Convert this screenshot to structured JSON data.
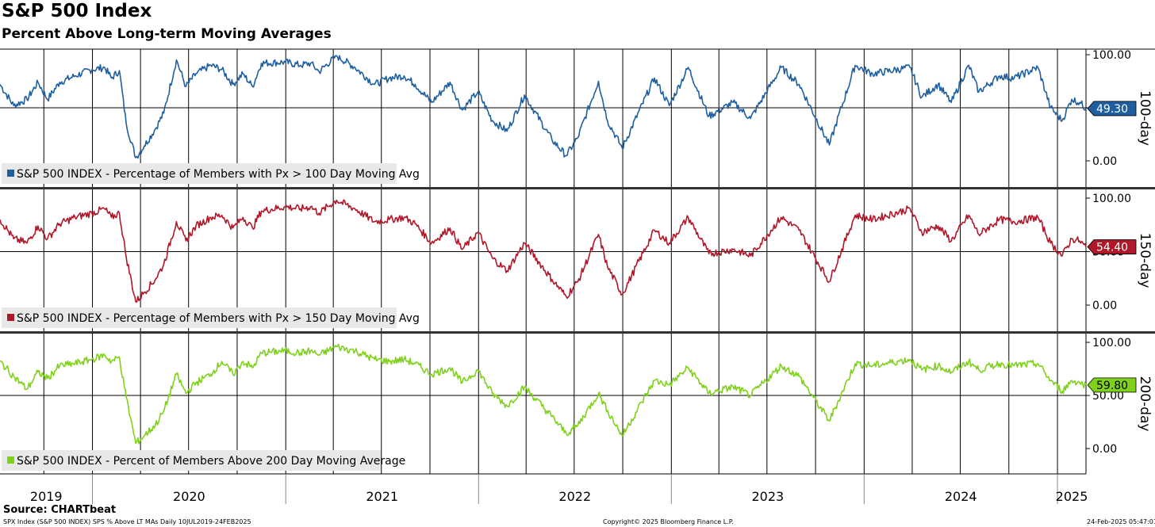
{
  "header": {
    "title": "S&P 500 Index",
    "subtitle": "Percent Above Long-term Moving Averages"
  },
  "footer": {
    "source": "Source: CHARTbeat",
    "ticker_info": "SPX Index (S&P 500 INDEX) SPS % Above LT MAs  Daily 10JUL2019-24FEB2025",
    "copyright": "Copyright© 2025 Bloomberg Finance L.P.",
    "timestamp": "24-Feb-2025 05:47:01"
  },
  "colors": {
    "series_100": "#1f5fa0",
    "series_150": "#b0182a",
    "series_200": "#7fd11b",
    "grid": "#000000",
    "legend_bg": "#e8e8e8"
  },
  "chart_data": {
    "type": "line",
    "x_range": [
      "2019-07-10",
      "2025-02-24"
    ],
    "x_tick_labels": [
      "2019",
      "2020",
      "2021",
      "2022",
      "2023",
      "2024",
      "2025"
    ],
    "x_year_boundaries": [
      "2020-01-01",
      "2021-01-01",
      "2022-01-01",
      "2023-01-01",
      "2024-01-01",
      "2025-01-01"
    ],
    "ylim": [
      0,
      100
    ],
    "y_tick_labels": [
      "100.00",
      "50.00",
      "0.00"
    ],
    "grid": true,
    "panels": [
      {
        "id": "p100",
        "side_label": "100-day",
        "legend": "S&P 500 INDEX - Percentage of Members with Px > 100 Day Moving Avg",
        "last_value_label": "49.30",
        "last_value": 49.3,
        "color_key": "series_100",
        "points": [
          [
            "2019-07-10",
            72
          ],
          [
            "2019-08-05",
            52
          ],
          [
            "2019-08-30",
            58
          ],
          [
            "2019-09-20",
            74
          ],
          [
            "2019-10-08",
            58
          ],
          [
            "2019-10-31",
            74
          ],
          [
            "2019-11-29",
            80
          ],
          [
            "2019-12-31",
            86
          ],
          [
            "2020-01-24",
            88
          ],
          [
            "2020-02-06",
            78
          ],
          [
            "2020-02-21",
            85
          ],
          [
            "2020-03-05",
            35
          ],
          [
            "2020-03-23",
            3
          ],
          [
            "2020-04-08",
            14
          ],
          [
            "2020-04-29",
            30
          ],
          [
            "2020-05-15",
            45
          ],
          [
            "2020-06-08",
            95
          ],
          [
            "2020-06-26",
            70
          ],
          [
            "2020-07-15",
            82
          ],
          [
            "2020-08-12",
            90
          ],
          [
            "2020-09-02",
            86
          ],
          [
            "2020-09-23",
            72
          ],
          [
            "2020-10-12",
            82
          ],
          [
            "2020-10-30",
            70
          ],
          [
            "2020-11-16",
            92
          ],
          [
            "2020-12-31",
            93
          ],
          [
            "2021-01-29",
            90
          ],
          [
            "2021-02-17",
            92
          ],
          [
            "2021-03-05",
            84
          ],
          [
            "2021-04-07",
            99
          ],
          [
            "2021-05-12",
            88
          ],
          [
            "2021-06-18",
            72
          ],
          [
            "2021-07-16",
            78
          ],
          [
            "2021-08-13",
            80
          ],
          [
            "2021-09-03",
            72
          ],
          [
            "2021-10-04",
            55
          ],
          [
            "2021-11-08",
            74
          ],
          [
            "2021-12-01",
            48
          ],
          [
            "2021-12-31",
            65
          ],
          [
            "2022-01-27",
            38
          ],
          [
            "2022-02-24",
            28
          ],
          [
            "2022-03-29",
            62
          ],
          [
            "2022-05-20",
            20
          ],
          [
            "2022-06-16",
            5
          ],
          [
            "2022-07-08",
            22
          ],
          [
            "2022-08-16",
            75
          ],
          [
            "2022-09-02",
            38
          ],
          [
            "2022-09-30",
            12
          ],
          [
            "2022-11-30",
            78
          ],
          [
            "2022-12-28",
            52
          ],
          [
            "2023-02-02",
            88
          ],
          [
            "2023-03-13",
            42
          ],
          [
            "2023-04-28",
            55
          ],
          [
            "2023-05-31",
            40
          ],
          [
            "2023-07-28",
            88
          ],
          [
            "2023-08-31",
            72
          ],
          [
            "2023-10-27",
            15
          ],
          [
            "2023-12-15",
            90
          ],
          [
            "2024-01-17",
            82
          ],
          [
            "2024-03-28",
            88
          ],
          [
            "2024-04-19",
            60
          ],
          [
            "2024-05-20",
            72
          ],
          [
            "2024-06-14",
            55
          ],
          [
            "2024-07-17",
            90
          ],
          [
            "2024-08-05",
            65
          ],
          [
            "2024-09-13",
            80
          ],
          [
            "2024-10-11",
            78
          ],
          [
            "2024-11-25",
            88
          ],
          [
            "2024-12-19",
            50
          ],
          [
            "2025-01-10",
            38
          ],
          [
            "2025-01-28",
            58
          ],
          [
            "2025-02-12",
            55
          ],
          [
            "2025-02-24",
            49.3
          ]
        ]
      },
      {
        "id": "p150",
        "side_label": "150-day",
        "legend": "S&P 500 INDEX - Percentage of Members with Px > 150 Day Moving Avg",
        "last_value_label": "54.40",
        "last_value": 54.4,
        "color_key": "series_150",
        "points": [
          [
            "2019-07-10",
            80
          ],
          [
            "2019-08-05",
            62
          ],
          [
            "2019-08-30",
            58
          ],
          [
            "2019-09-20",
            74
          ],
          [
            "2019-10-08",
            62
          ],
          [
            "2019-10-31",
            76
          ],
          [
            "2019-11-29",
            82
          ],
          [
            "2019-12-31",
            86
          ],
          [
            "2020-01-24",
            90
          ],
          [
            "2020-02-06",
            82
          ],
          [
            "2020-02-21",
            86
          ],
          [
            "2020-03-05",
            45
          ],
          [
            "2020-03-23",
            3
          ],
          [
            "2020-04-08",
            12
          ],
          [
            "2020-04-29",
            24
          ],
          [
            "2020-05-15",
            38
          ],
          [
            "2020-06-08",
            78
          ],
          [
            "2020-06-26",
            60
          ],
          [
            "2020-07-15",
            74
          ],
          [
            "2020-08-12",
            82
          ],
          [
            "2020-09-02",
            84
          ],
          [
            "2020-09-23",
            72
          ],
          [
            "2020-10-12",
            82
          ],
          [
            "2020-10-30",
            72
          ],
          [
            "2020-11-16",
            88
          ],
          [
            "2020-12-31",
            92
          ],
          [
            "2021-01-29",
            90
          ],
          [
            "2021-02-17",
            92
          ],
          [
            "2021-03-05",
            86
          ],
          [
            "2021-04-07",
            98
          ],
          [
            "2021-05-12",
            90
          ],
          [
            "2021-06-18",
            78
          ],
          [
            "2021-07-16",
            80
          ],
          [
            "2021-08-13",
            82
          ],
          [
            "2021-09-03",
            76
          ],
          [
            "2021-10-04",
            58
          ],
          [
            "2021-11-08",
            72
          ],
          [
            "2021-12-01",
            52
          ],
          [
            "2021-12-31",
            68
          ],
          [
            "2022-01-27",
            44
          ],
          [
            "2022-02-24",
            32
          ],
          [
            "2022-03-29",
            58
          ],
          [
            "2022-05-20",
            24
          ],
          [
            "2022-06-16",
            8
          ],
          [
            "2022-07-08",
            22
          ],
          [
            "2022-08-16",
            66
          ],
          [
            "2022-09-02",
            36
          ],
          [
            "2022-09-30",
            10
          ],
          [
            "2022-11-30",
            70
          ],
          [
            "2022-12-28",
            58
          ],
          [
            "2023-02-02",
            82
          ],
          [
            "2023-03-13",
            48
          ],
          [
            "2023-04-28",
            52
          ],
          [
            "2023-05-31",
            46
          ],
          [
            "2023-07-28",
            82
          ],
          [
            "2023-08-31",
            70
          ],
          [
            "2023-10-27",
            22
          ],
          [
            "2023-12-15",
            84
          ],
          [
            "2024-01-17",
            80
          ],
          [
            "2024-03-28",
            90
          ],
          [
            "2024-04-19",
            68
          ],
          [
            "2024-05-20",
            74
          ],
          [
            "2024-06-14",
            60
          ],
          [
            "2024-07-17",
            84
          ],
          [
            "2024-08-05",
            66
          ],
          [
            "2024-09-13",
            80
          ],
          [
            "2024-10-11",
            78
          ],
          [
            "2024-11-25",
            82
          ],
          [
            "2024-12-19",
            58
          ],
          [
            "2025-01-10",
            46
          ],
          [
            "2025-01-28",
            62
          ],
          [
            "2025-02-12",
            60
          ],
          [
            "2025-02-24",
            54.4
          ]
        ]
      },
      {
        "id": "p200",
        "side_label": "200-day",
        "legend": "S&P 500 INDEX - Percent of Members Above 200 Day Moving Average",
        "last_value_label": "59.80",
        "last_value": 59.8,
        "color_key": "series_200",
        "points": [
          [
            "2019-07-10",
            82
          ],
          [
            "2019-08-05",
            68
          ],
          [
            "2019-08-30",
            56
          ],
          [
            "2019-09-20",
            72
          ],
          [
            "2019-10-08",
            66
          ],
          [
            "2019-10-31",
            78
          ],
          [
            "2019-11-29",
            80
          ],
          [
            "2019-12-31",
            84
          ],
          [
            "2020-01-24",
            88
          ],
          [
            "2020-02-06",
            82
          ],
          [
            "2020-02-21",
            86
          ],
          [
            "2020-03-05",
            48
          ],
          [
            "2020-03-23",
            5
          ],
          [
            "2020-04-08",
            12
          ],
          [
            "2020-04-29",
            22
          ],
          [
            "2020-05-15",
            35
          ],
          [
            "2020-06-08",
            70
          ],
          [
            "2020-06-26",
            52
          ],
          [
            "2020-07-15",
            62
          ],
          [
            "2020-08-12",
            70
          ],
          [
            "2020-09-02",
            82
          ],
          [
            "2020-09-23",
            70
          ],
          [
            "2020-10-12",
            82
          ],
          [
            "2020-10-30",
            76
          ],
          [
            "2020-11-16",
            90
          ],
          [
            "2020-12-31",
            92
          ],
          [
            "2021-01-29",
            90
          ],
          [
            "2021-02-17",
            92
          ],
          [
            "2021-03-05",
            88
          ],
          [
            "2021-04-07",
            96
          ],
          [
            "2021-05-12",
            92
          ],
          [
            "2021-06-18",
            84
          ],
          [
            "2021-07-16",
            82
          ],
          [
            "2021-08-13",
            84
          ],
          [
            "2021-09-03",
            80
          ],
          [
            "2021-10-04",
            70
          ],
          [
            "2021-11-08",
            76
          ],
          [
            "2021-12-01",
            62
          ],
          [
            "2021-12-31",
            74
          ],
          [
            "2022-01-27",
            52
          ],
          [
            "2022-02-24",
            40
          ],
          [
            "2022-03-29",
            58
          ],
          [
            "2022-05-20",
            30
          ],
          [
            "2022-06-16",
            14
          ],
          [
            "2022-07-08",
            22
          ],
          [
            "2022-08-16",
            52
          ],
          [
            "2022-09-02",
            36
          ],
          [
            "2022-09-30",
            12
          ],
          [
            "2022-11-30",
            64
          ],
          [
            "2022-12-28",
            60
          ],
          [
            "2023-02-02",
            76
          ],
          [
            "2023-03-13",
            52
          ],
          [
            "2023-04-28",
            58
          ],
          [
            "2023-05-31",
            50
          ],
          [
            "2023-07-28",
            78
          ],
          [
            "2023-08-31",
            68
          ],
          [
            "2023-10-27",
            26
          ],
          [
            "2023-12-15",
            80
          ],
          [
            "2024-01-17",
            78
          ],
          [
            "2024-03-28",
            84
          ],
          [
            "2024-04-19",
            74
          ],
          [
            "2024-05-20",
            78
          ],
          [
            "2024-06-14",
            72
          ],
          [
            "2024-07-17",
            82
          ],
          [
            "2024-08-05",
            74
          ],
          [
            "2024-09-13",
            80
          ],
          [
            "2024-10-11",
            78
          ],
          [
            "2024-11-25",
            80
          ],
          [
            "2024-12-19",
            64
          ],
          [
            "2025-01-10",
            54
          ],
          [
            "2025-01-28",
            64
          ],
          [
            "2025-02-12",
            62
          ],
          [
            "2025-02-24",
            59.8
          ]
        ]
      }
    ]
  }
}
